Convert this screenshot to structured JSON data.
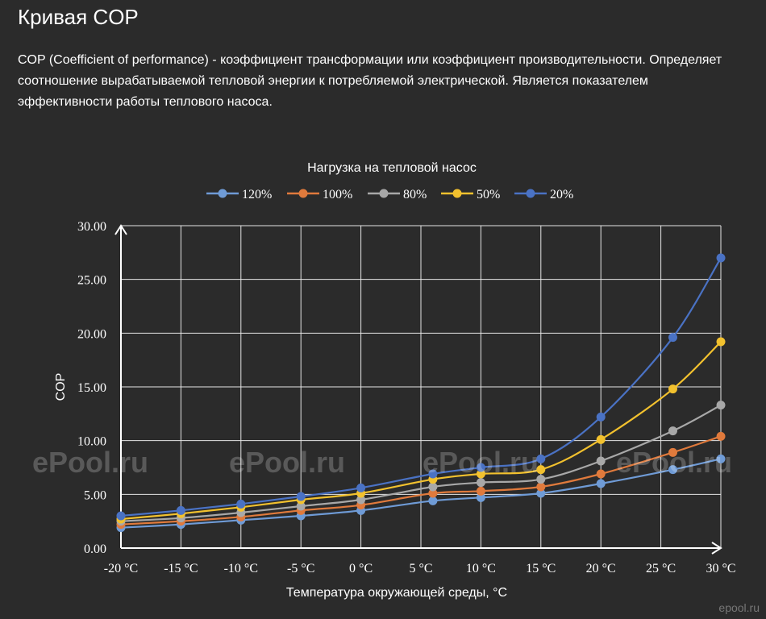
{
  "page": {
    "title": "Кривая COP",
    "description": "COP (Coefficient of performance) - коэффициент трансформации или коэффициент производительности. Определяет соотношение вырабатываемой тепловой энергии к потребляемой электрической. Является показателем эффективности работы теплового насоса.",
    "watermark": "ePool.ru",
    "corner_logo": "epool.ru"
  },
  "chart_data": {
    "type": "line",
    "title": "Нагрузка на тепловой насос",
    "xlabel": "Температура окружающей среды, °C",
    "ylabel": "COP",
    "x": [
      -20,
      -15,
      -10,
      -5,
      0,
      5,
      10,
      15,
      20,
      25,
      30
    ],
    "x_tick_labels": [
      "-20 °C",
      "-15 °C",
      "-10 °C",
      "-5 °C",
      "0 °C",
      "5 °C",
      "10 °C",
      "15 °C",
      "20 °C",
      "25 °C",
      "30 °C"
    ],
    "xlim": [
      -20,
      30
    ],
    "y_ticks": [
      0,
      5,
      10,
      15,
      20,
      25,
      30
    ],
    "y_tick_labels": [
      "0.00",
      "5.00",
      "10.00",
      "15.00",
      "20.00",
      "25.00",
      "30.00"
    ],
    "ylim": [
      0,
      30
    ],
    "grid": true,
    "legend_position": "top",
    "series": [
      {
        "name": "120%",
        "color": "#6f9bd6",
        "points": [
          [
            -20,
            1.9
          ],
          [
            -15,
            2.2
          ],
          [
            -10,
            2.6
          ],
          [
            -5,
            3.0
          ],
          [
            0,
            3.5
          ],
          [
            6,
            4.4
          ],
          [
            10,
            4.7
          ],
          [
            15,
            5.1
          ],
          [
            20,
            6.0
          ],
          [
            26,
            7.3
          ],
          [
            30,
            8.3
          ]
        ]
      },
      {
        "name": "100%",
        "color": "#e07a3c",
        "points": [
          [
            -20,
            2.2
          ],
          [
            -15,
            2.5
          ],
          [
            -10,
            2.9
          ],
          [
            -5,
            3.5
          ],
          [
            0,
            4.0
          ],
          [
            6,
            5.1
          ],
          [
            10,
            5.3
          ],
          [
            15,
            5.7
          ],
          [
            20,
            6.9
          ],
          [
            26,
            8.9
          ],
          [
            30,
            10.4
          ]
        ]
      },
      {
        "name": "80%",
        "color": "#a8a8a8",
        "points": [
          [
            -20,
            2.5
          ],
          [
            -15,
            2.8
          ],
          [
            -10,
            3.3
          ],
          [
            -5,
            3.9
          ],
          [
            0,
            4.5
          ],
          [
            6,
            5.7
          ],
          [
            10,
            6.1
          ],
          [
            15,
            6.4
          ],
          [
            20,
            8.1
          ],
          [
            26,
            10.9
          ],
          [
            30,
            13.3
          ]
        ]
      },
      {
        "name": "50%",
        "color": "#f2c12e",
        "points": [
          [
            -20,
            2.7
          ],
          [
            -15,
            3.2
          ],
          [
            -10,
            3.8
          ],
          [
            -5,
            4.5
          ],
          [
            0,
            5.1
          ],
          [
            6,
            6.4
          ],
          [
            10,
            6.9
          ],
          [
            15,
            7.3
          ],
          [
            20,
            10.1
          ],
          [
            26,
            14.8
          ],
          [
            30,
            19.2
          ]
        ]
      },
      {
        "name": "20%",
        "color": "#4a72c4",
        "points": [
          [
            -20,
            3.0
          ],
          [
            -15,
            3.5
          ],
          [
            -10,
            4.1
          ],
          [
            -5,
            4.8
          ],
          [
            0,
            5.6
          ],
          [
            6,
            6.9
          ],
          [
            10,
            7.5
          ],
          [
            15,
            8.3
          ],
          [
            20,
            12.2
          ],
          [
            26,
            19.6
          ],
          [
            30,
            27.0
          ]
        ]
      }
    ]
  }
}
